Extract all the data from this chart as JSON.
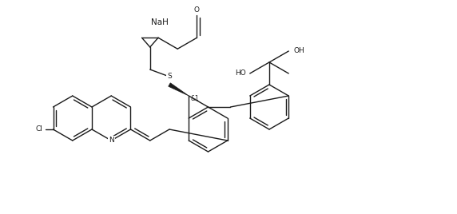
{
  "background_color": "#ffffff",
  "bond_color": "#1a1a1a",
  "text_color": "#1a1a1a",
  "line_width": 1.0,
  "font_size": 6.5,
  "fig_width": 5.72,
  "fig_height": 2.68,
  "dpi": 100,
  "NaH_label": "NaH",
  "stereo_label": "&1",
  "S_label": "S",
  "N_label": "N",
  "Cl_label": "Cl",
  "HO_label": "HO",
  "OH_label": "OH",
  "O_label": "O"
}
